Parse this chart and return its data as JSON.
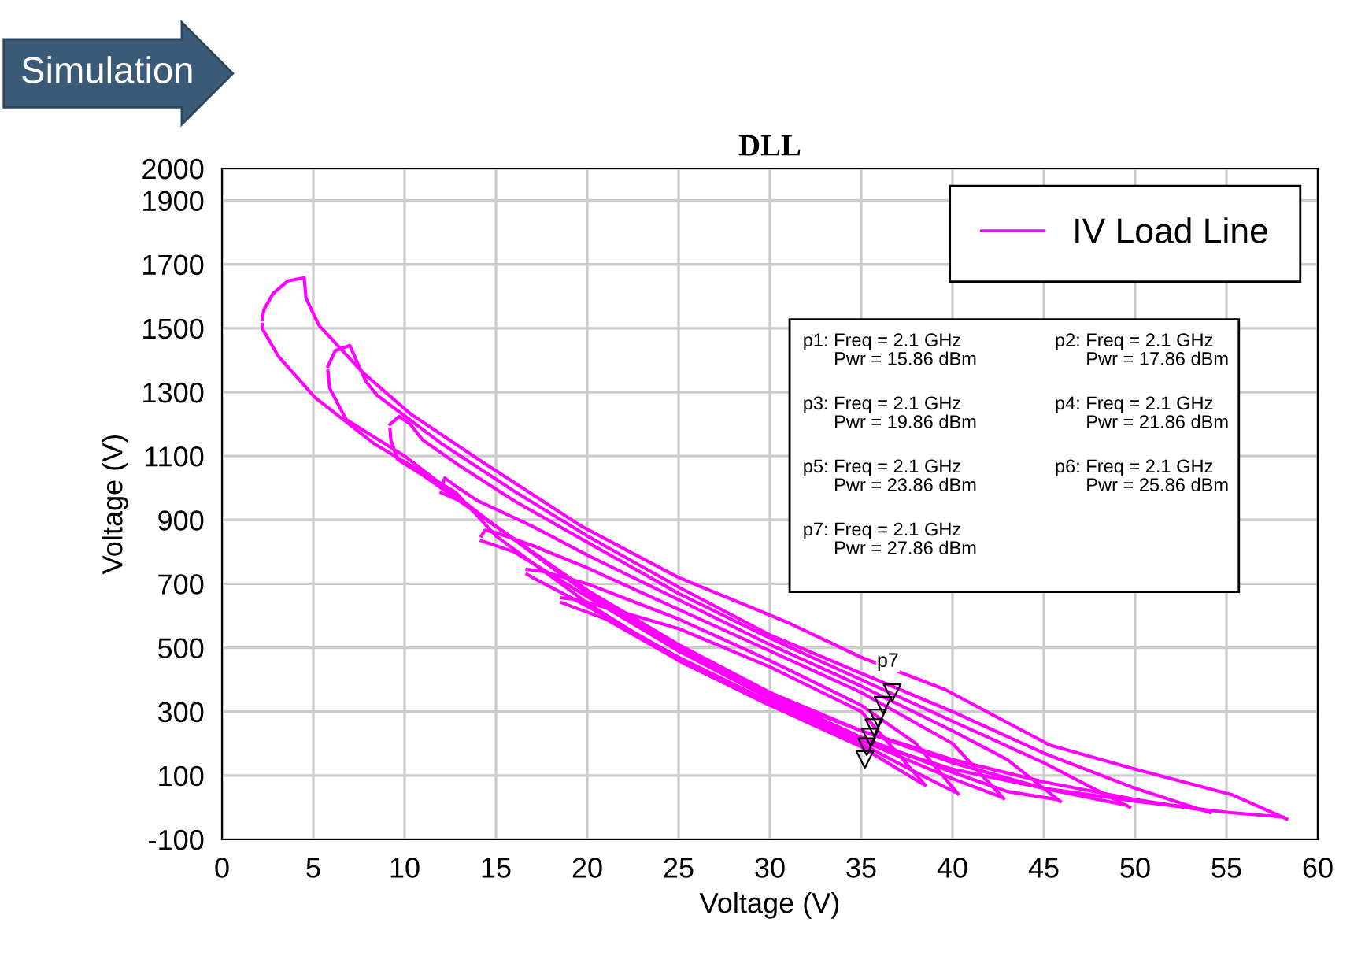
{
  "chart_data": {
    "type": "line",
    "title": "DLL",
    "xlabel": "Voltage (V)",
    "ylabel": "Voltage (V)",
    "xlim": [
      0,
      60
    ],
    "xticks": [
      0,
      5,
      10,
      15,
      20,
      25,
      30,
      35,
      40,
      45,
      50,
      55,
      60
    ],
    "ylim": [
      -100,
      2000
    ],
    "yticks": [
      -100,
      100,
      300,
      500,
      700,
      900,
      1100,
      1300,
      1500,
      1700,
      1900,
      2000
    ],
    "grid": true,
    "legend": "top right",
    "marker": "none",
    "line_style": "solid",
    "series": [
      {
        "name": "IV Load Line",
        "color": "#ff00ff",
        "x": [
          2.2,
          2.3,
          2.8,
          3.6,
          4.5,
          4.6,
          5.3,
          7.7,
          10.3,
          14.3,
          19.7,
          25,
          30.9,
          35,
          39.6,
          45.3,
          50,
          55.3,
          58.3
        ],
        "values": [
          1527,
          1559,
          1609,
          1648,
          1658,
          1594,
          1510,
          1362,
          1233,
          1080,
          880,
          720,
          581,
          470,
          369,
          196,
          120,
          40,
          -36
        ]
      },
      {
        "color": "#ff00ff",
        "x": [
          2.2,
          2.25,
          3.1,
          5.1,
          8.3,
          12.8,
          15,
          20,
          25,
          30,
          35,
          40,
          45,
          50,
          55,
          58.1
        ],
        "values": [
          1512,
          1495,
          1411,
          1283,
          1140,
          986,
          850,
          640,
          460,
          320,
          210,
          120,
          60,
          20,
          -15,
          -30
        ]
      },
      {
        "color": "#ff00ff",
        "x": [
          5.8,
          6.2,
          7.0,
          7.5,
          7.9,
          8.5,
          12,
          16,
          20,
          25,
          30,
          35,
          40,
          45,
          50,
          54.1
        ],
        "values": [
          1381,
          1430,
          1446,
          1381,
          1332,
          1290,
          1140,
          990,
          850,
          690,
          540,
          420,
          300,
          170,
          60,
          -16
        ]
      },
      {
        "color": "#ff00ff",
        "x": [
          5.8,
          5.9,
          6.8,
          10,
          15,
          20,
          25,
          30,
          35,
          40,
          45,
          50,
          53.9
        ],
        "values": [
          1366,
          1312,
          1214,
          1100,
          880,
          670,
          490,
          350,
          240,
          150,
          80,
          25,
          -10
        ]
      },
      {
        "color": "#ff00ff",
        "x": [
          9.2,
          9.7,
          10.3,
          11,
          13,
          16,
          20,
          25,
          30,
          35,
          40,
          45,
          49.7
        ],
        "values": [
          1199,
          1224,
          1200,
          1150,
          1070,
          960,
          830,
          670,
          530,
          400,
          270,
          140,
          1
        ]
      },
      {
        "color": "#ff00ff",
        "x": [
          9.2,
          9.25,
          9.6,
          11,
          15,
          20,
          25,
          30,
          35,
          40,
          45,
          49.5
        ],
        "values": [
          1184,
          1150,
          1090,
          1040,
          880,
          680,
          510,
          360,
          240,
          140,
          60,
          7
        ]
      },
      {
        "color": "#ff00ff",
        "x": [
          12,
          12.2,
          12.7,
          14,
          17,
          20,
          25,
          30,
          35,
          40,
          43,
          45.9
        ],
        "values": [
          1000,
          1031,
          1010,
          960,
          880,
          790,
          650,
          510,
          380,
          240,
          150,
          19
        ]
      },
      {
        "color": "#ff00ff",
        "x": [
          12,
          13,
          16,
          20,
          25,
          30,
          35,
          40,
          43,
          45.7
        ],
        "values": [
          985,
          960,
          840,
          670,
          500,
          350,
          220,
          110,
          50,
          25
        ]
      },
      {
        "color": "#ff00ff",
        "x": [
          14.2,
          14.4,
          15,
          17,
          20,
          25,
          30,
          35,
          40,
          42.8
        ],
        "values": [
          850,
          868,
          860,
          820,
          750,
          620,
          490,
          360,
          200,
          28
        ]
      },
      {
        "color": "#ff00ff",
        "x": [
          14.2,
          16,
          20,
          25,
          30,
          35,
          40,
          42.6
        ],
        "values": [
          835,
          800,
          660,
          490,
          340,
          210,
          90,
          34
        ]
      },
      {
        "color": "#ff00ff",
        "x": [
          16.7,
          17.5,
          20,
          25,
          30,
          35,
          38,
          40.3
        ],
        "values": [
          745,
          740,
          700,
          590,
          460,
          320,
          200,
          43
        ]
      },
      {
        "color": "#ff00ff",
        "x": [
          16.7,
          17,
          20,
          25,
          30,
          35,
          38,
          40.1
        ],
        "values": [
          730,
          720,
          630,
          470,
          330,
          200,
          110,
          49
        ]
      },
      {
        "color": "#ff00ff",
        "x": [
          18.6,
          19.5,
          22,
          25,
          30,
          35,
          38.5
        ],
        "values": [
          656,
          650,
          610,
          560,
          440,
          300,
          70
        ]
      },
      {
        "color": "#ff00ff",
        "x": [
          18.6,
          21,
          25,
          30,
          35,
          38.3
        ],
        "values": [
          641,
          590,
          460,
          320,
          190,
          76
        ]
      },
      {
        "type": "scatter",
        "marker": "triangle",
        "color": "#000000",
        "x": [
          35.2,
          35.3,
          35.5,
          35.7,
          35.9,
          36.2,
          36.7
        ],
        "values": [
          150,
          190,
          220,
          250,
          280,
          320,
          359
        ]
      }
    ],
    "annotations": [
      "Simulation",
      "p1: Freq = 2.1 GHz\n      Pwr = 15.86 dBm",
      "p2: Freq = 2.1 GHz\n      Pwr = 17.86 dBm",
      "p3: Freq = 2.1 GHz\n      Pwr = 19.86 dBm",
      "p4: Freq = 2.1 GHz\n      Pwr = 21.86 dBm",
      "p5: Freq = 2.1 GHz\n      Pwr = 23.86 dBm",
      "p6: Freq = 2.1 GHz\n      Pwr = 25.86 dBm",
      "p7: Freq = 2.1 GHz\n      Pwr = 27.86 dBm",
      {
        "text": "p7",
        "x": 36.7,
        "y": 359
      }
    ]
  }
}
